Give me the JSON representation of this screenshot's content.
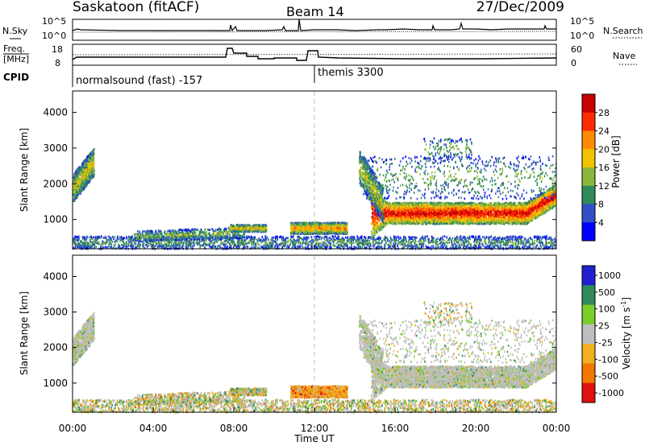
{
  "header": {
    "station": "Saskatoon (fitACF)",
    "beam": "Beam 14",
    "date": "27/Dec/2009"
  },
  "noise_panel": {
    "left_label": "N.Sky",
    "right_label": "N.Search",
    "left_ticks": [
      "10^5",
      "10^0"
    ],
    "right_ticks": [
      "10^5",
      "10^0"
    ]
  },
  "freq_panel": {
    "left_label_line1": "Freq.",
    "left_label_line2": "[MHz]",
    "right_label": "Nave",
    "left_ticks": [
      "18",
      "8"
    ],
    "right_ticks": [
      "60",
      "0"
    ],
    "cpid_label": "CPID",
    "cpid_left": "normalsound (fast) -157",
    "cpid_right": "themis 3300"
  },
  "colors": {
    "power": [
      "#0000ff",
      "#3050c8",
      "#2f8a5a",
      "#8ab83c",
      "#f2c400",
      "#ff8c00",
      "#ff2a00",
      "#c80000"
    ],
    "velocity": [
      "#2020d0",
      "#2f8a5a",
      "#7ccc2a",
      "#bebebe",
      "#f0b020",
      "#f07800",
      "#e01010"
    ]
  },
  "chart_data": [
    {
      "type": "heatmap",
      "ylabel": "Slant Range [km]",
      "xlim": [
        "00:00",
        "00:00"
      ],
      "ylim": [
        180,
        4600
      ],
      "yticks": [
        1000,
        2000,
        3000,
        4000
      ],
      "colorbar_label": "Power [dB]",
      "colorbar_ticks": [
        "4",
        "8",
        "12",
        "16",
        "20",
        "24",
        "28"
      ],
      "colorbar_range": [
        0,
        32
      ]
    },
    {
      "type": "heatmap",
      "ylabel": "Slant Range [km]",
      "xlabel": "Time UT",
      "xticks": [
        "00:00",
        "04:00",
        "08:00",
        "12:00",
        "16:00",
        "20:00",
        "00:00"
      ],
      "ylim": [
        180,
        4600
      ],
      "yticks": [
        1000,
        2000,
        3000,
        4000
      ],
      "colorbar_label": "Velocity [m s^-1]",
      "colorbar_ticks": [
        "1000",
        "500",
        "100",
        "25",
        "-25",
        "-100",
        "-500",
        "-1000"
      ]
    }
  ]
}
